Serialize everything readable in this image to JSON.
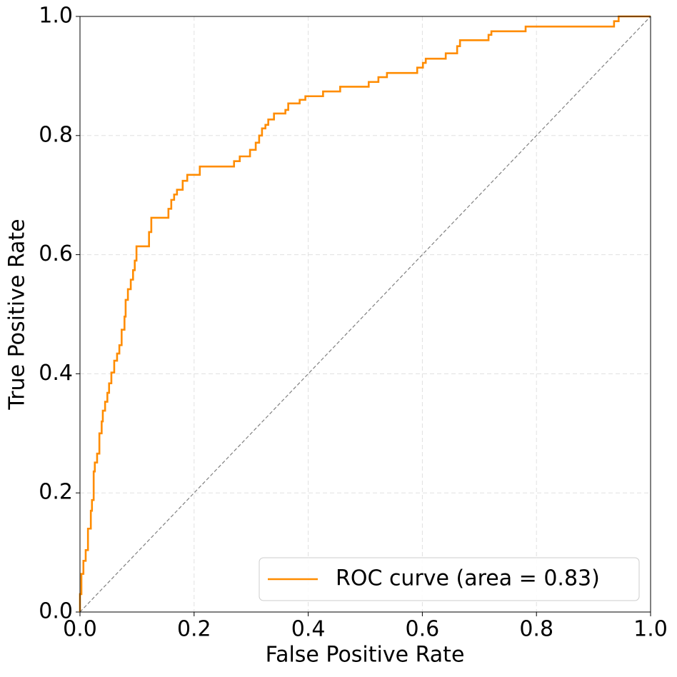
{
  "chart_data": {
    "type": "line",
    "xlabel": "False Positive Rate",
    "ylabel": "True Positive Rate",
    "xlim": [
      0,
      1
    ],
    "ylim": [
      0,
      1
    ],
    "xticks": [
      {
        "value": 0,
        "label": "0.0"
      },
      0.2,
      0.4,
      0.6,
      0.8,
      {
        "value": 1,
        "label": "1.0"
      }
    ],
    "yticks": [
      {
        "value": 0,
        "label": "0.0"
      },
      0.2,
      0.4,
      0.6,
      0.8,
      {
        "value": 1,
        "label": "1.0"
      }
    ],
    "grid": true,
    "legend": "lower right",
    "series": [
      {
        "name": "ROC curve (area = 0.83)",
        "color": "#ff8c00",
        "x": [
          0,
          0,
          0.0025,
          0.0025,
          0.006,
          0.006,
          0.01,
          0.01,
          0.014,
          0.014,
          0.019,
          0.019,
          0.021,
          0.021,
          0.024,
          0.024,
          0.026,
          0.026,
          0.03,
          0.03,
          0.034,
          0.034,
          0.038,
          0.038,
          0.04,
          0.04,
          0.044,
          0.044,
          0.048,
          0.048,
          0.051,
          0.051,
          0.055,
          0.055,
          0.06,
          0.06,
          0.065,
          0.065,
          0.069,
          0.069,
          0.073,
          0.073,
          0.078,
          0.078,
          0.08,
          0.08,
          0.084,
          0.084,
          0.089,
          0.089,
          0.093,
          0.093,
          0.096,
          0.096,
          0.099,
          0.099,
          0.121,
          0.121,
          0.125,
          0.125,
          0.155,
          0.155,
          0.16,
          0.16,
          0.165,
          0.165,
          0.17,
          0.17,
          0.18,
          0.18,
          0.188,
          0.188,
          0.21,
          0.21,
          0.27,
          0.27,
          0.28,
          0.28,
          0.298,
          0.298,
          0.308,
          0.308,
          0.314,
          0.314,
          0.319,
          0.319,
          0.325,
          0.325,
          0.33,
          0.33,
          0.34,
          0.34,
          0.36,
          0.36,
          0.365,
          0.365,
          0.385,
          0.385,
          0.395,
          0.395,
          0.426,
          0.426,
          0.456,
          0.456,
          0.506,
          0.506,
          0.523,
          0.523,
          0.538,
          0.538,
          0.591,
          0.591,
          0.601,
          0.601,
          0.606,
          0.606,
          0.641,
          0.641,
          0.661,
          0.661,
          0.666,
          0.666,
          0.716,
          0.716,
          0.721,
          0.721,
          0.781,
          0.781,
          0.936,
          0.936,
          0.944,
          0.944,
          1
        ],
        "values": [
          0,
          0.03,
          0.03,
          0.064,
          0.064,
          0.086,
          0.086,
          0.104,
          0.104,
          0.14,
          0.14,
          0.17,
          0.17,
          0.188,
          0.188,
          0.236,
          0.236,
          0.251,
          0.251,
          0.266,
          0.266,
          0.3,
          0.3,
          0.32,
          0.32,
          0.338,
          0.338,
          0.353,
          0.353,
          0.368,
          0.368,
          0.384,
          0.384,
          0.402,
          0.402,
          0.422,
          0.422,
          0.434,
          0.434,
          0.448,
          0.448,
          0.474,
          0.474,
          0.496,
          0.496,
          0.524,
          0.524,
          0.542,
          0.542,
          0.558,
          0.558,
          0.574,
          0.574,
          0.59,
          0.59,
          0.614,
          0.614,
          0.638,
          0.638,
          0.662,
          0.662,
          0.677,
          0.677,
          0.692,
          0.692,
          0.701,
          0.701,
          0.709,
          0.709,
          0.724,
          0.724,
          0.734,
          0.734,
          0.748,
          0.748,
          0.757,
          0.757,
          0.765,
          0.765,
          0.776,
          0.776,
          0.788,
          0.788,
          0.8,
          0.8,
          0.812,
          0.812,
          0.818,
          0.818,
          0.827,
          0.827,
          0.837,
          0.837,
          0.843,
          0.843,
          0.854,
          0.854,
          0.86,
          0.86,
          0.866,
          0.866,
          0.874,
          0.874,
          0.882,
          0.882,
          0.89,
          0.89,
          0.898,
          0.898,
          0.905,
          0.905,
          0.914,
          0.914,
          0.922,
          0.922,
          0.929,
          0.929,
          0.938,
          0.938,
          0.95,
          0.95,
          0.96,
          0.96,
          0.969,
          0.969,
          0.975,
          0.975,
          0.983,
          0.983,
          0.992,
          0.992,
          1,
          1
        ]
      },
      {
        "color": "#808080",
        "dashed": true,
        "x": [
          0,
          1
        ],
        "values": [
          0,
          1
        ]
      }
    ]
  }
}
